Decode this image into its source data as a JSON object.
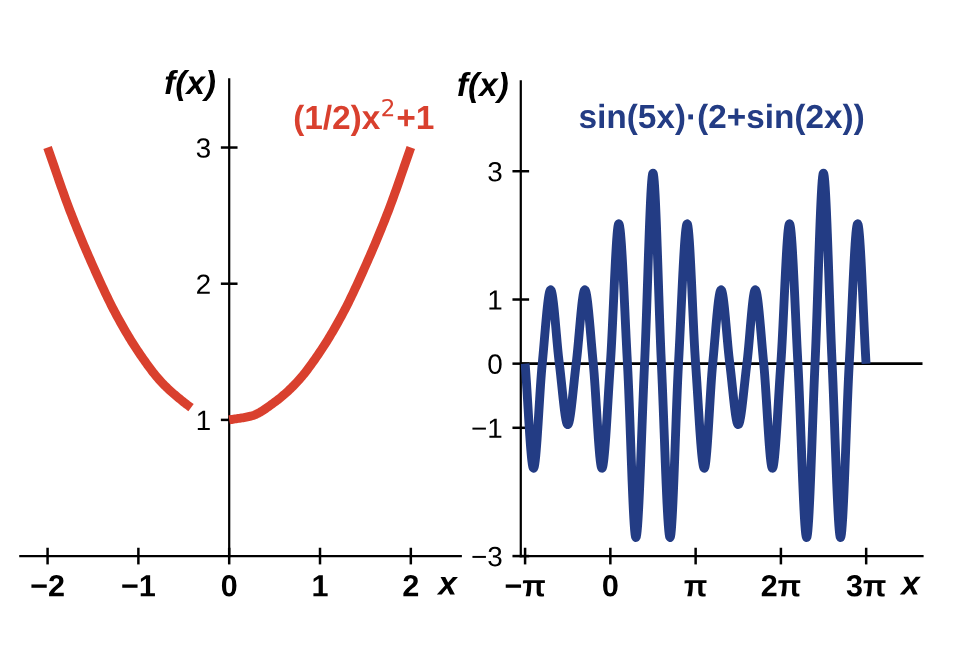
{
  "chart_data": [
    {
      "type": "line",
      "xlabel": "x",
      "ylabel": "f(x)",
      "xlim": [
        -2.3,
        2.55
      ],
      "ylim": [
        0,
        3.5
      ],
      "xticks": [
        {
          "value": -2,
          "label": "−2"
        },
        {
          "value": -1,
          "label": "−1"
        },
        0,
        1,
        2
      ],
      "yticks": [
        1,
        2,
        3
      ],
      "series": [
        {
          "name": "(1/2)x$^{2}$+1",
          "color": "#d9402e",
          "x": [
            -2,
            -1.75,
            -1.5,
            -1.25,
            -1,
            -0.75,
            -0.5,
            -0.42,
            -0.2,
            0,
            0.25,
            0.5,
            0.75,
            1,
            1.25,
            1.5,
            1.75,
            2
          ],
          "values": [
            3,
            2.53,
            2.13,
            1.78,
            1.5,
            1.28,
            1.13,
            1.09,
            null,
            1,
            1.03,
            1.13,
            1.28,
            1.5,
            1.78,
            2.13,
            2.53,
            3
          ]
        }
      ]
    },
    {
      "type": "line",
      "xlabel": "x",
      "ylabel": "f(x)",
      "xlim": [
        -3.3,
        11.5
      ],
      "ylim": [
        -3,
        4.4
      ],
      "xticks": [
        {
          "value": -3.1416,
          "label": "−π"
        },
        0,
        {
          "value": 3.1416,
          "label": "π"
        },
        {
          "value": 6.2832,
          "label": "2π"
        },
        {
          "value": 9.4248,
          "label": "3π"
        }
      ],
      "yticks": [
        {
          "value": -3,
          "label": "−3"
        },
        {
          "value": -1,
          "label": "−1"
        },
        0,
        1,
        3
      ],
      "ref_lines": [
        {
          "axis": "y",
          "value": 0,
          "label": null,
          "color": "#000000"
        }
      ],
      "series": [
        {
          "name": "sin(5x)·(2+sin(2x))",
          "color": "#233c84",
          "x": [
            -3.14,
            -2.83,
            -2.51,
            -2.2,
            -1.88,
            -1.57,
            -1.26,
            -0.94,
            -0.63,
            -0.31,
            0,
            0.31,
            0.63,
            0.94,
            1.26,
            1.57,
            1.88,
            2.2,
            2.51,
            2.83,
            3.14,
            3.46,
            3.77,
            4.08,
            4.4,
            4.71,
            5.03,
            5.34,
            5.65,
            5.97,
            6.28,
            6.6,
            6.91,
            7.23,
            7.54,
            7.85,
            8.17,
            8.48,
            8.8,
            9.11,
            9.42
          ],
          "values": [
            0,
            -1.63,
            0,
            1.15,
            0,
            -0.95,
            0,
            1.15,
            0,
            -1.63,
            0,
            2.18,
            0,
            -2.71,
            0,
            2.97,
            0,
            -2.71,
            0,
            2.18,
            0,
            -1.63,
            0,
            1.15,
            0,
            -0.95,
            0,
            1.15,
            0,
            -1.63,
            0,
            2.18,
            0,
            -2.71,
            0,
            2.97,
            0,
            -2.71,
            0,
            2.18,
            0
          ]
        }
      ]
    }
  ]
}
